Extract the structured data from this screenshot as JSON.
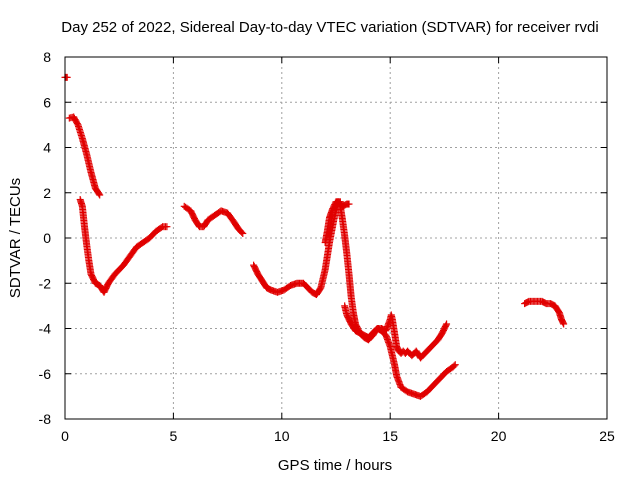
{
  "chart_data": {
    "type": "scatter",
    "title": "Day 252 of 2022, Sidereal Day-to-day VTEC variation (SDTVAR) for receiver rvdi",
    "xlabel": "GPS time / hours",
    "ylabel": "SDTVAR / TECUs",
    "xlim": [
      0,
      25
    ],
    "ylim": [
      -8,
      8
    ],
    "xticks": [
      "0",
      "5",
      "10",
      "15",
      "20",
      "25"
    ],
    "yticks": [
      "-8",
      "-6",
      "-4",
      "-2",
      "0",
      "2",
      "4",
      "6",
      "8"
    ],
    "grid": true,
    "marker": "+",
    "series": [
      {
        "name": "SDTVAR",
        "color": "#e00000",
        "segments": [
          {
            "x": [
              0,
              0.1
            ],
            "y": [
              7.1,
              7.1
            ]
          },
          {
            "x": [
              0.2,
              0.4,
              0.6,
              0.8,
              1.0,
              1.2,
              1.4,
              1.6
            ],
            "y": [
              5.3,
              5.35,
              5.0,
              4.4,
              3.7,
              2.9,
              2.2,
              1.9
            ]
          },
          {
            "x": [
              0.7,
              0.8,
              0.9,
              1.0,
              1.1,
              1.2,
              1.4,
              1.6,
              1.8,
              2.0,
              2.3,
              2.7,
              3.0,
              3.3,
              3.6,
              3.9,
              4.2,
              4.5,
              4.7
            ],
            "y": [
              1.7,
              1.4,
              0.5,
              -0.3,
              -1.0,
              -1.6,
              -2.0,
              -2.1,
              -2.4,
              -2.0,
              -1.6,
              -1.2,
              -0.8,
              -0.4,
              -0.2,
              0.0,
              0.3,
              0.5,
              0.5
            ]
          },
          {
            "x": [
              5.5,
              5.8,
              6.0,
              6.2,
              6.4,
              6.6,
              6.9,
              7.2,
              7.5,
              7.8,
              8.0,
              8.2
            ],
            "y": [
              1.4,
              1.2,
              0.8,
              0.5,
              0.5,
              0.8,
              1.0,
              1.2,
              1.1,
              0.7,
              0.4,
              0.2
            ]
          },
          {
            "x": [
              8.7,
              8.9,
              9.1,
              9.3,
              9.5,
              9.8,
              10.1,
              10.4,
              10.7,
              11.0,
              11.2,
              11.4,
              11.6,
              11.8,
              12.0,
              12.2,
              12.4,
              12.6,
              12.7
            ],
            "y": [
              -1.2,
              -1.6,
              -1.9,
              -2.2,
              -2.3,
              -2.4,
              -2.3,
              -2.1,
              -2.0,
              -2.0,
              -2.2,
              -2.4,
              -2.5,
              -2.2,
              -1.4,
              -0.2,
              0.8,
              1.6,
              1.6
            ]
          },
          {
            "x": [
              12.7,
              12.8,
              12.9,
              13.0,
              13.1,
              13.2,
              13.3,
              13.4,
              13.6,
              13.8,
              14.0,
              14.2,
              14.4,
              14.6,
              14.8,
              15.0,
              15.1,
              15.2,
              15.3,
              15.5,
              15.8,
              16.1,
              16.4,
              16.7,
              17.0,
              17.3,
              17.6,
              17.9,
              18.0
            ],
            "y": [
              1.4,
              0.8,
              0.1,
              -0.7,
              -1.6,
              -2.6,
              -3.3,
              -3.8,
              -4.2,
              -4.4,
              -4.5,
              -4.3,
              -4.0,
              -4.1,
              -4.3,
              -4.8,
              -5.2,
              -5.6,
              -6.1,
              -6.6,
              -6.8,
              -6.9,
              -7.0,
              -6.8,
              -6.5,
              -6.2,
              -5.9,
              -5.7,
              -5.6
            ]
          },
          {
            "x": [
              12.0,
              12.1,
              12.2,
              12.35,
              12.5,
              12.6,
              12.8,
              13.0,
              13.1
            ],
            "y": [
              -0.2,
              0.3,
              0.9,
              1.3,
              1.6,
              1.6,
              1.4,
              1.5,
              1.5
            ]
          },
          {
            "x": [
              12.9,
              13.0,
              13.2,
              13.4,
              13.6,
              13.8,
              14.0,
              14.2,
              14.4,
              14.6,
              14.8,
              15.0,
              15.05,
              15.1,
              15.2,
              15.3,
              15.4,
              15.5,
              15.6,
              15.7,
              15.8,
              16.0,
              16.2,
              16.4,
              16.6,
              16.8,
              17.0,
              17.2,
              17.4,
              17.6
            ],
            "y": [
              -3.0,
              -3.4,
              -3.8,
              -4.1,
              -4.2,
              -4.3,
              -4.4,
              -4.2,
              -4.0,
              -4.0,
              -4.1,
              -3.6,
              -3.4,
              -3.6,
              -4.2,
              -4.8,
              -5.0,
              -5.1,
              -5.0,
              -5.1,
              -5.0,
              -5.2,
              -5.0,
              -5.3,
              -5.1,
              -4.9,
              -4.7,
              -4.5,
              -4.2,
              -3.8
            ]
          },
          {
            "x": [
              21.2,
              21.4,
              21.6,
              21.8,
              22.0,
              22.2,
              22.4,
              22.6,
              22.8,
              22.9,
              23.0
            ],
            "y": [
              -2.9,
              -2.8,
              -2.8,
              -2.8,
              -2.8,
              -2.9,
              -2.9,
              -3.0,
              -3.3,
              -3.6,
              -3.8
            ]
          }
        ]
      }
    ]
  }
}
